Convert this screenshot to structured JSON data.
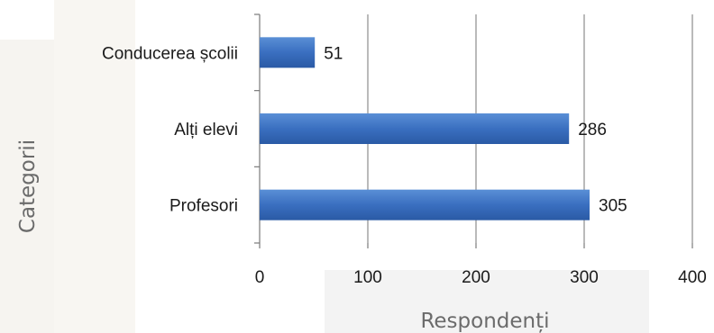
{
  "chart_data": {
    "type": "bar",
    "orientation": "horizontal",
    "categories": [
      "Conducerea școlii",
      "Alți elevi",
      "Profesori"
    ],
    "values": [
      51,
      286,
      305
    ],
    "xlabel": "Respondenți",
    "ylabel": "Categorii",
    "xlim": [
      0,
      400
    ],
    "xticks": [
      0,
      100,
      200,
      300,
      400
    ],
    "grid": "vertical",
    "bar_color": "#3a6fc0"
  }
}
